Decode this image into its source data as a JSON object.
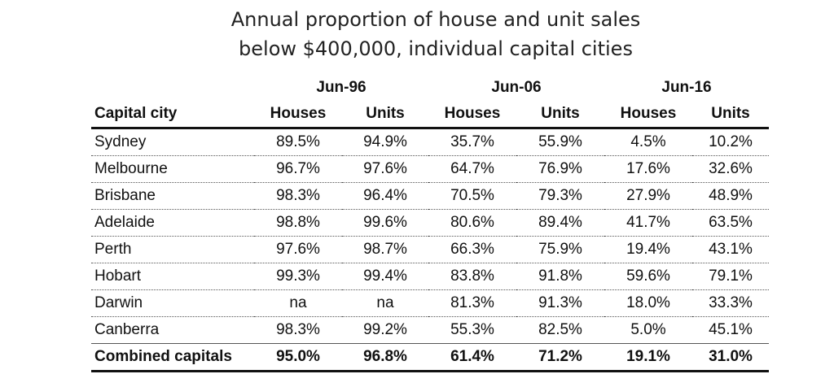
{
  "header": {
    "title": [
      "Annual proportion of house and unit sales",
      "below $400,000, individual capital cities"
    ]
  },
  "table": {
    "groups": [
      "Jun-96",
      "Jun-06",
      "Jun-16"
    ],
    "columns": [
      "Capital city",
      "Houses",
      "Units",
      "Houses",
      "Units",
      "Houses",
      "Units"
    ],
    "rows": [
      [
        "Sydney",
        "89.5%",
        "94.9%",
        "35.7%",
        "55.9%",
        "4.5%",
        "10.2%"
      ],
      [
        "Melbourne",
        "96.7%",
        "97.6%",
        "64.7%",
        "76.9%",
        "17.6%",
        "32.6%"
      ],
      [
        "Brisbane",
        "98.3%",
        "96.4%",
        "70.5%",
        "79.3%",
        "27.9%",
        "48.9%"
      ],
      [
        "Adelaide",
        "98.8%",
        "99.6%",
        "80.6%",
        "89.4%",
        "41.7%",
        "63.5%"
      ],
      [
        "Perth",
        "97.6%",
        "98.7%",
        "66.3%",
        "75.9%",
        "19.4%",
        "43.1%"
      ],
      [
        "Hobart",
        "99.3%",
        "99.4%",
        "83.8%",
        "91.8%",
        "59.6%",
        "79.1%"
      ],
      [
        "Darwin",
        "na",
        "na",
        "81.3%",
        "91.3%",
        "18.0%",
        "33.3%"
      ],
      [
        "Canberra",
        "98.3%",
        "99.2%",
        "55.3%",
        "82.5%",
        "5.0%",
        "45.1%"
      ],
      [
        "Combined capitals",
        "95.0%",
        "96.8%",
        "61.4%",
        "71.2%",
        "19.1%",
        "31.0%"
      ]
    ]
  }
}
